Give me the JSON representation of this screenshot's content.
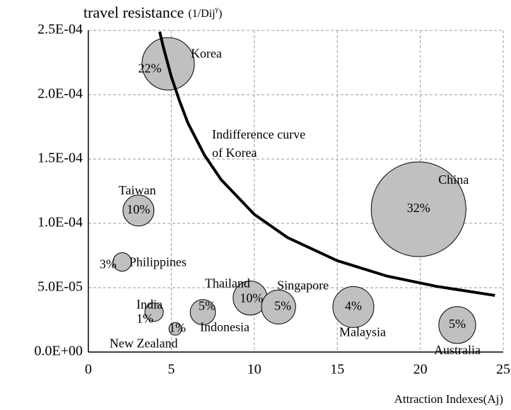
{
  "chart_data": {
    "type": "bubble",
    "y_label": "travel resistance",
    "y_unit": "(1/Dij",
    "y_unit_sup": "γ",
    "y_unit_end": ")",
    "x_label": "Attraction Indexes(Aj)",
    "annotation": [
      "Indifference curve",
      "of Korea"
    ],
    "categories": [
      "Korea",
      "China",
      "Taiwan",
      "Philippines",
      "India",
      "New Zealand",
      "Indonesia",
      "Thailand",
      "Singapore",
      "Malaysia",
      "Australia"
    ],
    "x": [
      4.81,
      19.9,
      3.02,
      2.04,
      3.96,
      5.24,
      6.9,
      9.75,
      11.46,
      15.97,
      22.23
    ],
    "values": [
      0.000224,
      0.000111,
      0.00011,
      7e-05,
      3.1e-05,
      1.8e-05,
      3.1e-05,
      4.2e-05,
      3.5e-05,
      3.5e-05,
      2.1e-05
    ],
    "sizes": [
      13.7,
      44.9,
      4.8,
      1.7,
      1.7,
      0.8,
      3.2,
      5.8,
      5.8,
      8.4,
      6.8
    ],
    "shares": [
      22,
      32,
      10,
      3,
      1,
      1,
      5,
      10,
      5,
      4,
      5
    ],
    "share_labels": [
      "22%",
      "32%",
      "10%",
      "3%",
      "1%",
      "1%",
      "5%",
      "10%",
      "5%",
      "4%",
      "5%"
    ],
    "color": "#c0c0c0",
    "curve": {
      "x": [
        4.3,
        4.5,
        5,
        5.5,
        6,
        7,
        8,
        10,
        12,
        15,
        18,
        21,
        24.5
      ],
      "values": [
        0.000249,
        0.000238,
        0.000214,
        0.000195,
        0.000178,
        0.000153,
        0.000134,
        0.000107,
        8.9e-05,
        7.1e-05,
        5.9e-05,
        5.1e-05,
        4.4e-05
      ],
      "color": "#000000"
    },
    "xlim": [
      0,
      25
    ],
    "xticks": [
      0,
      5,
      10,
      15,
      20,
      25
    ],
    "ylim": [
      0,
      0.00025
    ],
    "yticks": [
      {
        "value": 0,
        "label": "0.0E+00"
      },
      {
        "value": 5e-05,
        "label": "5.0E-05"
      },
      {
        "value": 0.0001,
        "label": "1.0E-04"
      },
      {
        "value": 0.00015,
        "label": "1.5E-04"
      },
      {
        "value": 0.0002,
        "label": "2.0E-04"
      },
      {
        "value": 0.00025,
        "label": "2.5E-04"
      }
    ],
    "grid": true
  }
}
